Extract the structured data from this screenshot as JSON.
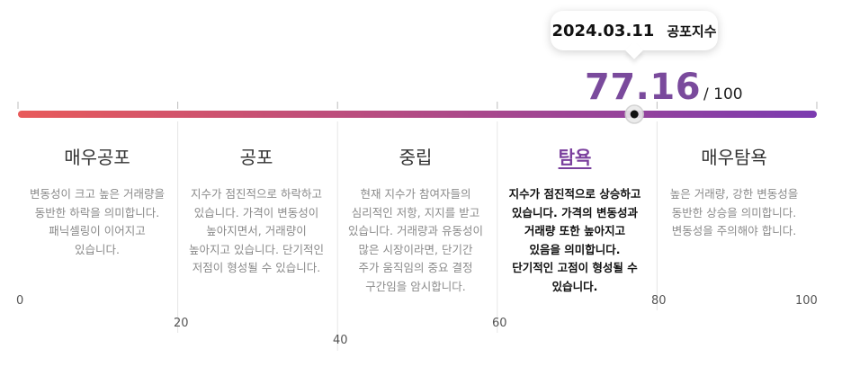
{
  "tooltip": {
    "date": "2024.03.11",
    "label": "공포지수"
  },
  "score": {
    "value": "77.16",
    "max_label": "/ 100",
    "value_num": 77.16,
    "max_num": 100
  },
  "colors": {
    "gradient_start": "#e85a5a",
    "gradient_end": "#7b3bb0",
    "score": "#7a4a9c",
    "active_title": "#7a3f9d"
  },
  "sections": [
    {
      "title": "매우공포",
      "desc": "변동성이 크고 높은 거래량을 동반한 하락을 의미합니다. 패닉셀링이 이어지고 있습니다."
    },
    {
      "title": "공포",
      "desc": "지수가 점진적으로 하락하고 있습니다. 가격이 변동성이 높아지면서, 거래량이 높아지고 있습니다. 단기적인 저점이 형성될 수 있습니다."
    },
    {
      "title": "중립",
      "desc": "현재 지수가 참여자들의 심리적인 저항, 지지를 받고 있습니다. 거래량과 유동성이 많은 시장이라면, 단기간 주가 움직임의 중요 결정 구간임을 암시합니다."
    },
    {
      "title": "탐욕",
      "desc": "지수가 점진적으로 상승하고 있습니다. 가격의 변동성과 거래량 또한 높아지고 있음을 의미합니다. 단기적인 고점이 형성될 수 있습니다.",
      "active": true
    },
    {
      "title": "매우탐욕",
      "desc": "높은 거래량, 강한 변동성을 동반한 상승을 의미합니다. 변동성을 주의해야 합니다."
    }
  ],
  "ticks": [
    "0",
    "20",
    "40",
    "60",
    "80",
    "100"
  ]
}
